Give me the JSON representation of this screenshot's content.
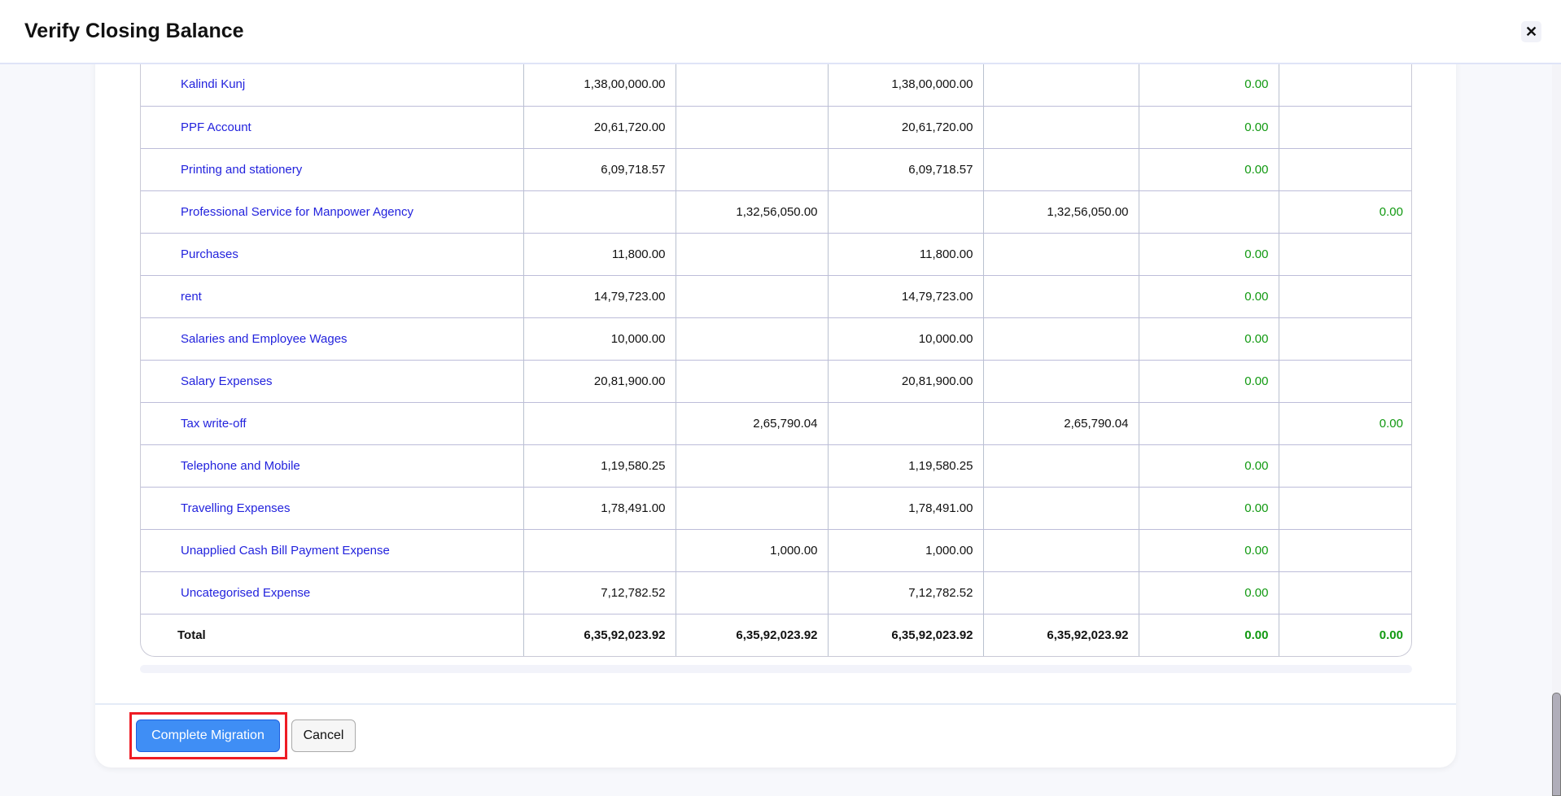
{
  "dialog": {
    "title": "Verify Closing Balance",
    "close_icon": "close-icon"
  },
  "table": {
    "rows": [
      {
        "name": "Kalindi Kunj",
        "c1": "1,38,00,000.00",
        "c2": "",
        "c3": "1,38,00,000.00",
        "c4": "",
        "c5": "0.00",
        "c6": ""
      },
      {
        "name": "PPF Account",
        "c1": "20,61,720.00",
        "c2": "",
        "c3": "20,61,720.00",
        "c4": "",
        "c5": "0.00",
        "c6": ""
      },
      {
        "name": "Printing and stationery",
        "c1": "6,09,718.57",
        "c2": "",
        "c3": "6,09,718.57",
        "c4": "",
        "c5": "0.00",
        "c6": ""
      },
      {
        "name": "Professional Service for Manpower Agency",
        "c1": "",
        "c2": "1,32,56,050.00",
        "c3": "",
        "c4": "1,32,56,050.00",
        "c5": "",
        "c6": "0.00"
      },
      {
        "name": "Purchases",
        "c1": "11,800.00",
        "c2": "",
        "c3": "11,800.00",
        "c4": "",
        "c5": "0.00",
        "c6": ""
      },
      {
        "name": "rent",
        "c1": "14,79,723.00",
        "c2": "",
        "c3": "14,79,723.00",
        "c4": "",
        "c5": "0.00",
        "c6": ""
      },
      {
        "name": "Salaries and Employee Wages",
        "c1": "10,000.00",
        "c2": "",
        "c3": "10,000.00",
        "c4": "",
        "c5": "0.00",
        "c6": ""
      },
      {
        "name": "Salary Expenses",
        "c1": "20,81,900.00",
        "c2": "",
        "c3": "20,81,900.00",
        "c4": "",
        "c5": "0.00",
        "c6": ""
      },
      {
        "name": "Tax write-off",
        "c1": "",
        "c2": "2,65,790.04",
        "c3": "",
        "c4": "2,65,790.04",
        "c5": "",
        "c6": "0.00"
      },
      {
        "name": "Telephone and Mobile",
        "c1": "1,19,580.25",
        "c2": "",
        "c3": "1,19,580.25",
        "c4": "",
        "c5": "0.00",
        "c6": ""
      },
      {
        "name": "Travelling Expenses",
        "c1": "1,78,491.00",
        "c2": "",
        "c3": "1,78,491.00",
        "c4": "",
        "c5": "0.00",
        "c6": ""
      },
      {
        "name": "Unapplied Cash Bill Payment Expense",
        "c1": "",
        "c2": "1,000.00",
        "c3": "1,000.00",
        "c4": "",
        "c5": "0.00",
        "c6": ""
      },
      {
        "name": "Uncategorised Expense",
        "c1": "7,12,782.52",
        "c2": "",
        "c3": "7,12,782.52",
        "c4": "",
        "c5": "0.00",
        "c6": ""
      }
    ],
    "total": {
      "name": "Total",
      "c1": "6,35,92,023.92",
      "c2": "6,35,92,023.92",
      "c3": "6,35,92,023.92",
      "c4": "6,35,92,023.92",
      "c5": "0.00",
      "c6": "0.00"
    }
  },
  "footer": {
    "complete_label": "Complete Migration",
    "cancel_label": "Cancel"
  },
  "colors": {
    "link": "#2323dd",
    "zero": "#119911",
    "primary": "#3f8ef5",
    "highlight": "#ee1c24"
  }
}
